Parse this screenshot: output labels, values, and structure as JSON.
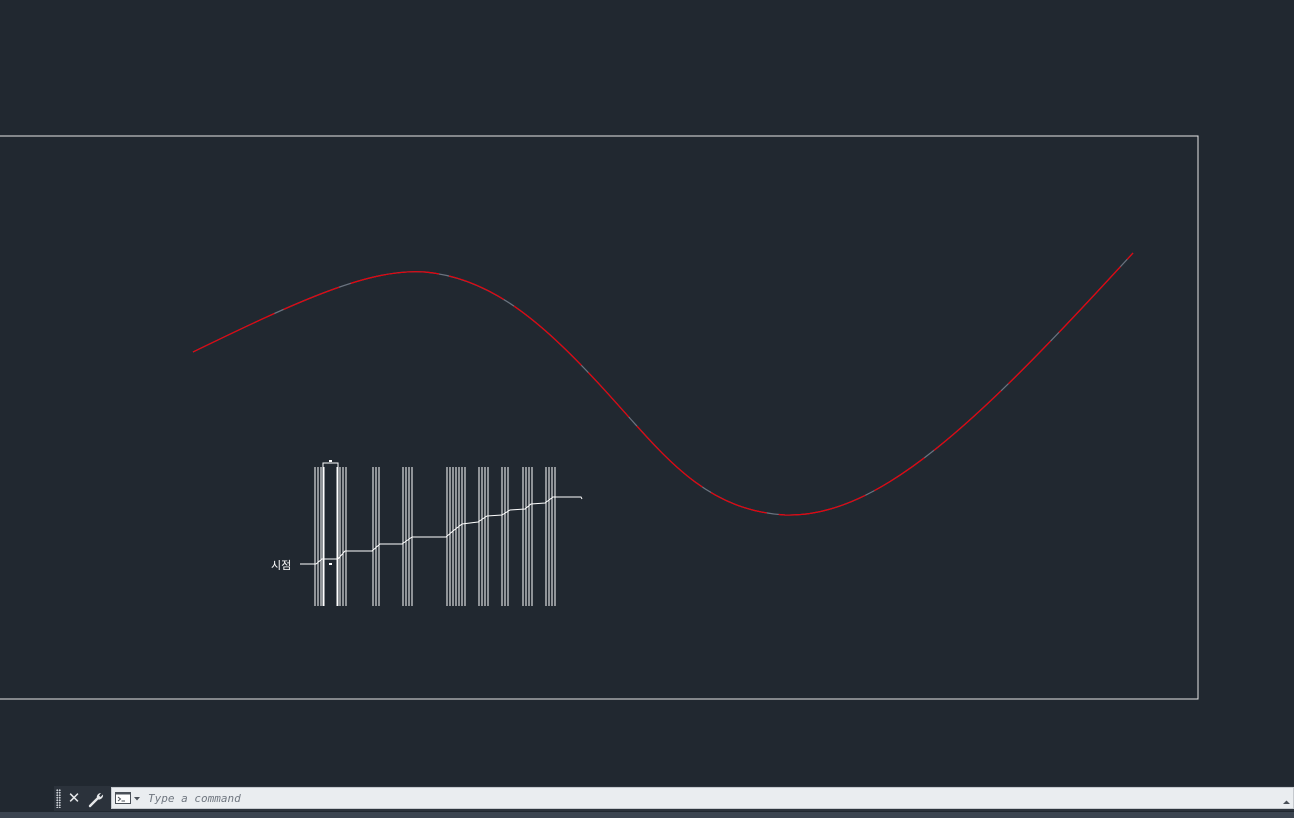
{
  "app": {
    "background_color": "#212830",
    "polyline_color": "#e8000b"
  },
  "drawing": {
    "start_label": "시점"
  },
  "command_line": {
    "placeholder": "Type a command",
    "value": "",
    "icons": {
      "handle": "grip-handle-icon",
      "close": "close-icon",
      "customize": "wrench-icon",
      "prompt": "command-prompt-icon",
      "history": "chevron-up-icon"
    },
    "close_glyph": "✕"
  }
}
